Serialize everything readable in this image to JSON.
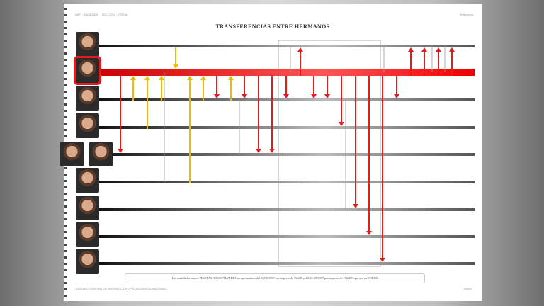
{
  "header": {
    "left": "UAF · HACIENDA ... SECCIÓN ... FISCAL",
    "right": "Referencia"
  },
  "title": "TRANSFERENCIAS ENTRE HERMANOS",
  "note": "Las cantidades son en PESETAS, EXCEPTUANDO las operaciones del 13/06/1997 por importe de 73.245 y del 21/10/1997 por importe de 172.290 que son en EUROS",
  "footer": {
    "left": "JUZGADO CENTRAL DE INSTRUCCIÓN Nº 5 (AUDIENCIA NACIONAL)",
    "right": "Anexo"
  },
  "colors": {
    "incoming": "#f2b705",
    "outgoing": "#e41b1b",
    "other": "#888888",
    "selected": "#e41b1b"
  },
  "persons": 9,
  "selected_person": 1,
  "transfers": [
    {
      "from": 0,
      "to": 1,
      "color": "incoming"
    },
    {
      "from": 2,
      "to": 1,
      "color": "incoming"
    },
    {
      "from": 3,
      "to": 1,
      "color": "incoming"
    },
    {
      "from": 2,
      "to": 1,
      "color": "incoming"
    },
    {
      "from": 5,
      "to": 1,
      "color": "incoming"
    },
    {
      "from": 2,
      "to": 1,
      "color": "incoming"
    },
    {
      "from": 2,
      "to": 1,
      "color": "incoming"
    },
    {
      "from": 1,
      "to": 4,
      "color": "outgoing"
    },
    {
      "from": 1,
      "to": 2,
      "color": "outgoing"
    },
    {
      "from": 1,
      "to": 2,
      "color": "outgoing"
    },
    {
      "from": 1,
      "to": 4,
      "color": "outgoing"
    },
    {
      "from": 1,
      "to": 4,
      "color": "outgoing"
    },
    {
      "from": 1,
      "to": 2,
      "color": "outgoing"
    },
    {
      "from": 1,
      "to": 0,
      "color": "outgoing"
    },
    {
      "from": 1,
      "to": 2,
      "color": "outgoing"
    },
    {
      "from": 1,
      "to": 2,
      "color": "outgoing"
    },
    {
      "from": 1,
      "to": 3,
      "color": "outgoing"
    },
    {
      "from": 1,
      "to": 6,
      "color": "outgoing"
    },
    {
      "from": 1,
      "to": 7,
      "color": "outgoing"
    },
    {
      "from": 1,
      "to": 8,
      "color": "outgoing"
    },
    {
      "from": 1,
      "to": 2,
      "color": "outgoing"
    },
    {
      "from": 1,
      "to": 0,
      "color": "outgoing"
    },
    {
      "from": 1,
      "to": 0,
      "color": "outgoing"
    },
    {
      "from": 1,
      "to": 0,
      "color": "outgoing"
    },
    {
      "from": 1,
      "to": 0,
      "color": "outgoing"
    }
  ]
}
